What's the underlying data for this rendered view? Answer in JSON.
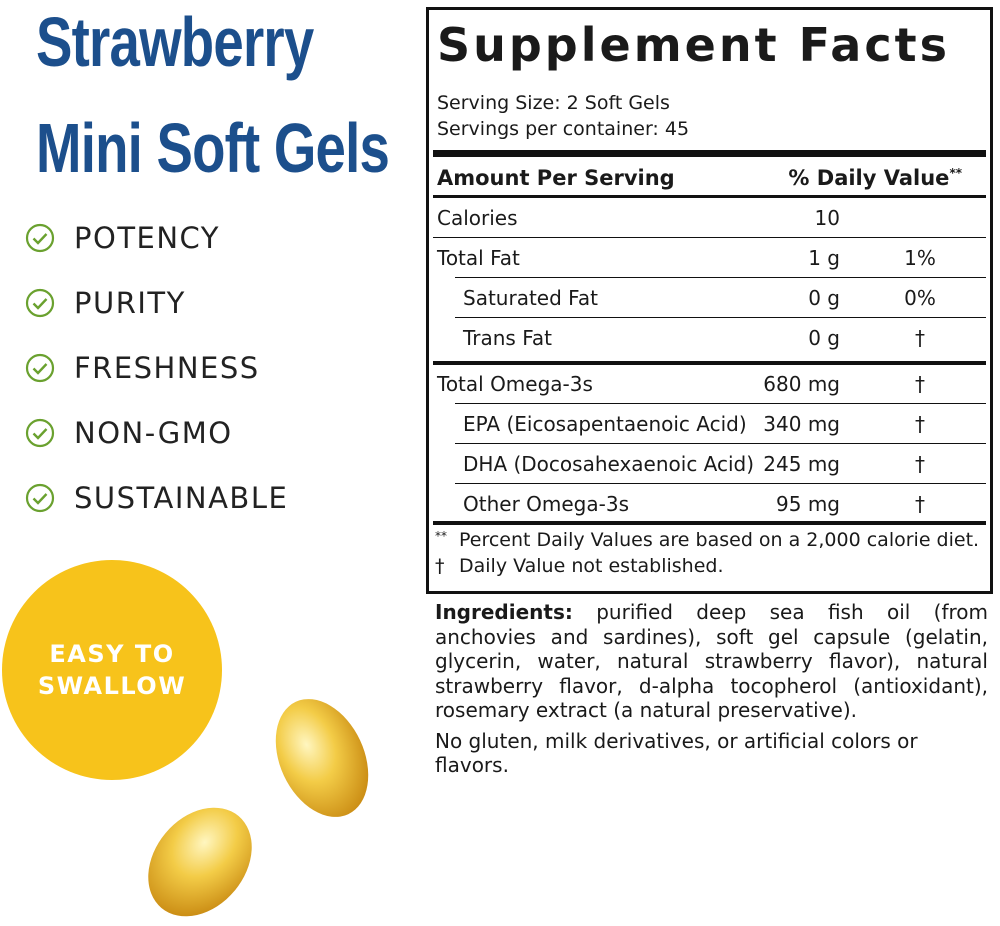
{
  "title": [
    "Strawberry",
    "Mini Soft Gels"
  ],
  "features": [
    "POTENCY",
    "PURITY",
    "FRESHNESS",
    "NON-GMO",
    "SUSTAINABLE"
  ],
  "badge": [
    "EASY TO",
    "SWALLOW"
  ],
  "facts": {
    "title": "Supplement Facts",
    "serving_size": "Serving Size: 2 Soft Gels",
    "servings_per_container": "Servings per container: 45",
    "header": {
      "amount": "Amount Per Serving",
      "dv": "% Daily Value",
      "mark": "**"
    },
    "groups": [
      [
        {
          "label": "Calories",
          "amount": "10"
        },
        {
          "label": "Total Fat",
          "amount": "1 g",
          "dv": "1%"
        },
        {
          "label": "Saturated Fat",
          "amount": "0 g",
          "dv": "0%",
          "indent": true
        },
        {
          "label": "Trans Fat",
          "amount": "0 g",
          "dv": "†",
          "indent": true
        }
      ],
      [
        {
          "label": "Total Omega-3s",
          "amount": "680 mg",
          "dv": "†"
        },
        {
          "label": "EPA (Eicosapentaenoic Acid)",
          "amount": "340 mg",
          "dv": "†",
          "indent": true
        },
        {
          "label": "DHA (Docosahexaenoic Acid)",
          "amount": "245 mg",
          "dv": "†",
          "indent": true
        },
        {
          "label": "Other Omega-3s",
          "amount": "95 mg",
          "dv": "†",
          "indent": true
        }
      ]
    ],
    "footnotes": [
      {
        "mark": "**",
        "text": "Percent Daily Values are based on a 2,000 calorie diet."
      },
      {
        "mark": "†",
        "text": "Daily Value not established."
      }
    ]
  },
  "ingredients": {
    "label": "Ingredients:",
    "text": "purified deep sea fish oil (from anchovies and sardines), soft gel capsule (gelatin, glycerin, water, natural strawberry flavor), natural strawberry flavor, d-alpha tocopherol (antioxidant), rosemary extract (a natural preservative).",
    "note": "No gluten, milk derivatives, or artificial colors or flavors."
  }
}
